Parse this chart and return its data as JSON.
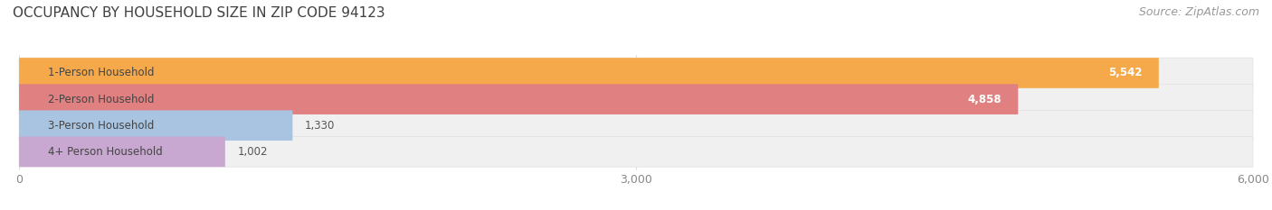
{
  "title": "OCCUPANCY BY HOUSEHOLD SIZE IN ZIP CODE 94123",
  "source": "Source: ZipAtlas.com",
  "categories": [
    "1-Person Household",
    "2-Person Household",
    "3-Person Household",
    "4+ Person Household"
  ],
  "values": [
    5542,
    4858,
    1330,
    1002
  ],
  "bar_colors": [
    "#F5A94A",
    "#E08080",
    "#A8C4E0",
    "#C8A8D0"
  ],
  "xlim": [
    0,
    6000
  ],
  "xticks": [
    0,
    3000,
    6000
  ],
  "bar_height": 0.62,
  "title_color": "#404040",
  "source_color": "#999999",
  "label_color": "#444444",
  "value_color_inside": "#ffffff",
  "value_color_outside": "#555555",
  "background_color": "#ffffff",
  "pill_color": "#f0f0f0",
  "pill_edge_color": "#e0e0e0",
  "grid_color": "#e0e0e0",
  "title_fontsize": 11,
  "source_fontsize": 9,
  "bar_label_fontsize": 8.5,
  "value_fontsize": 8.5,
  "tick_fontsize": 9
}
